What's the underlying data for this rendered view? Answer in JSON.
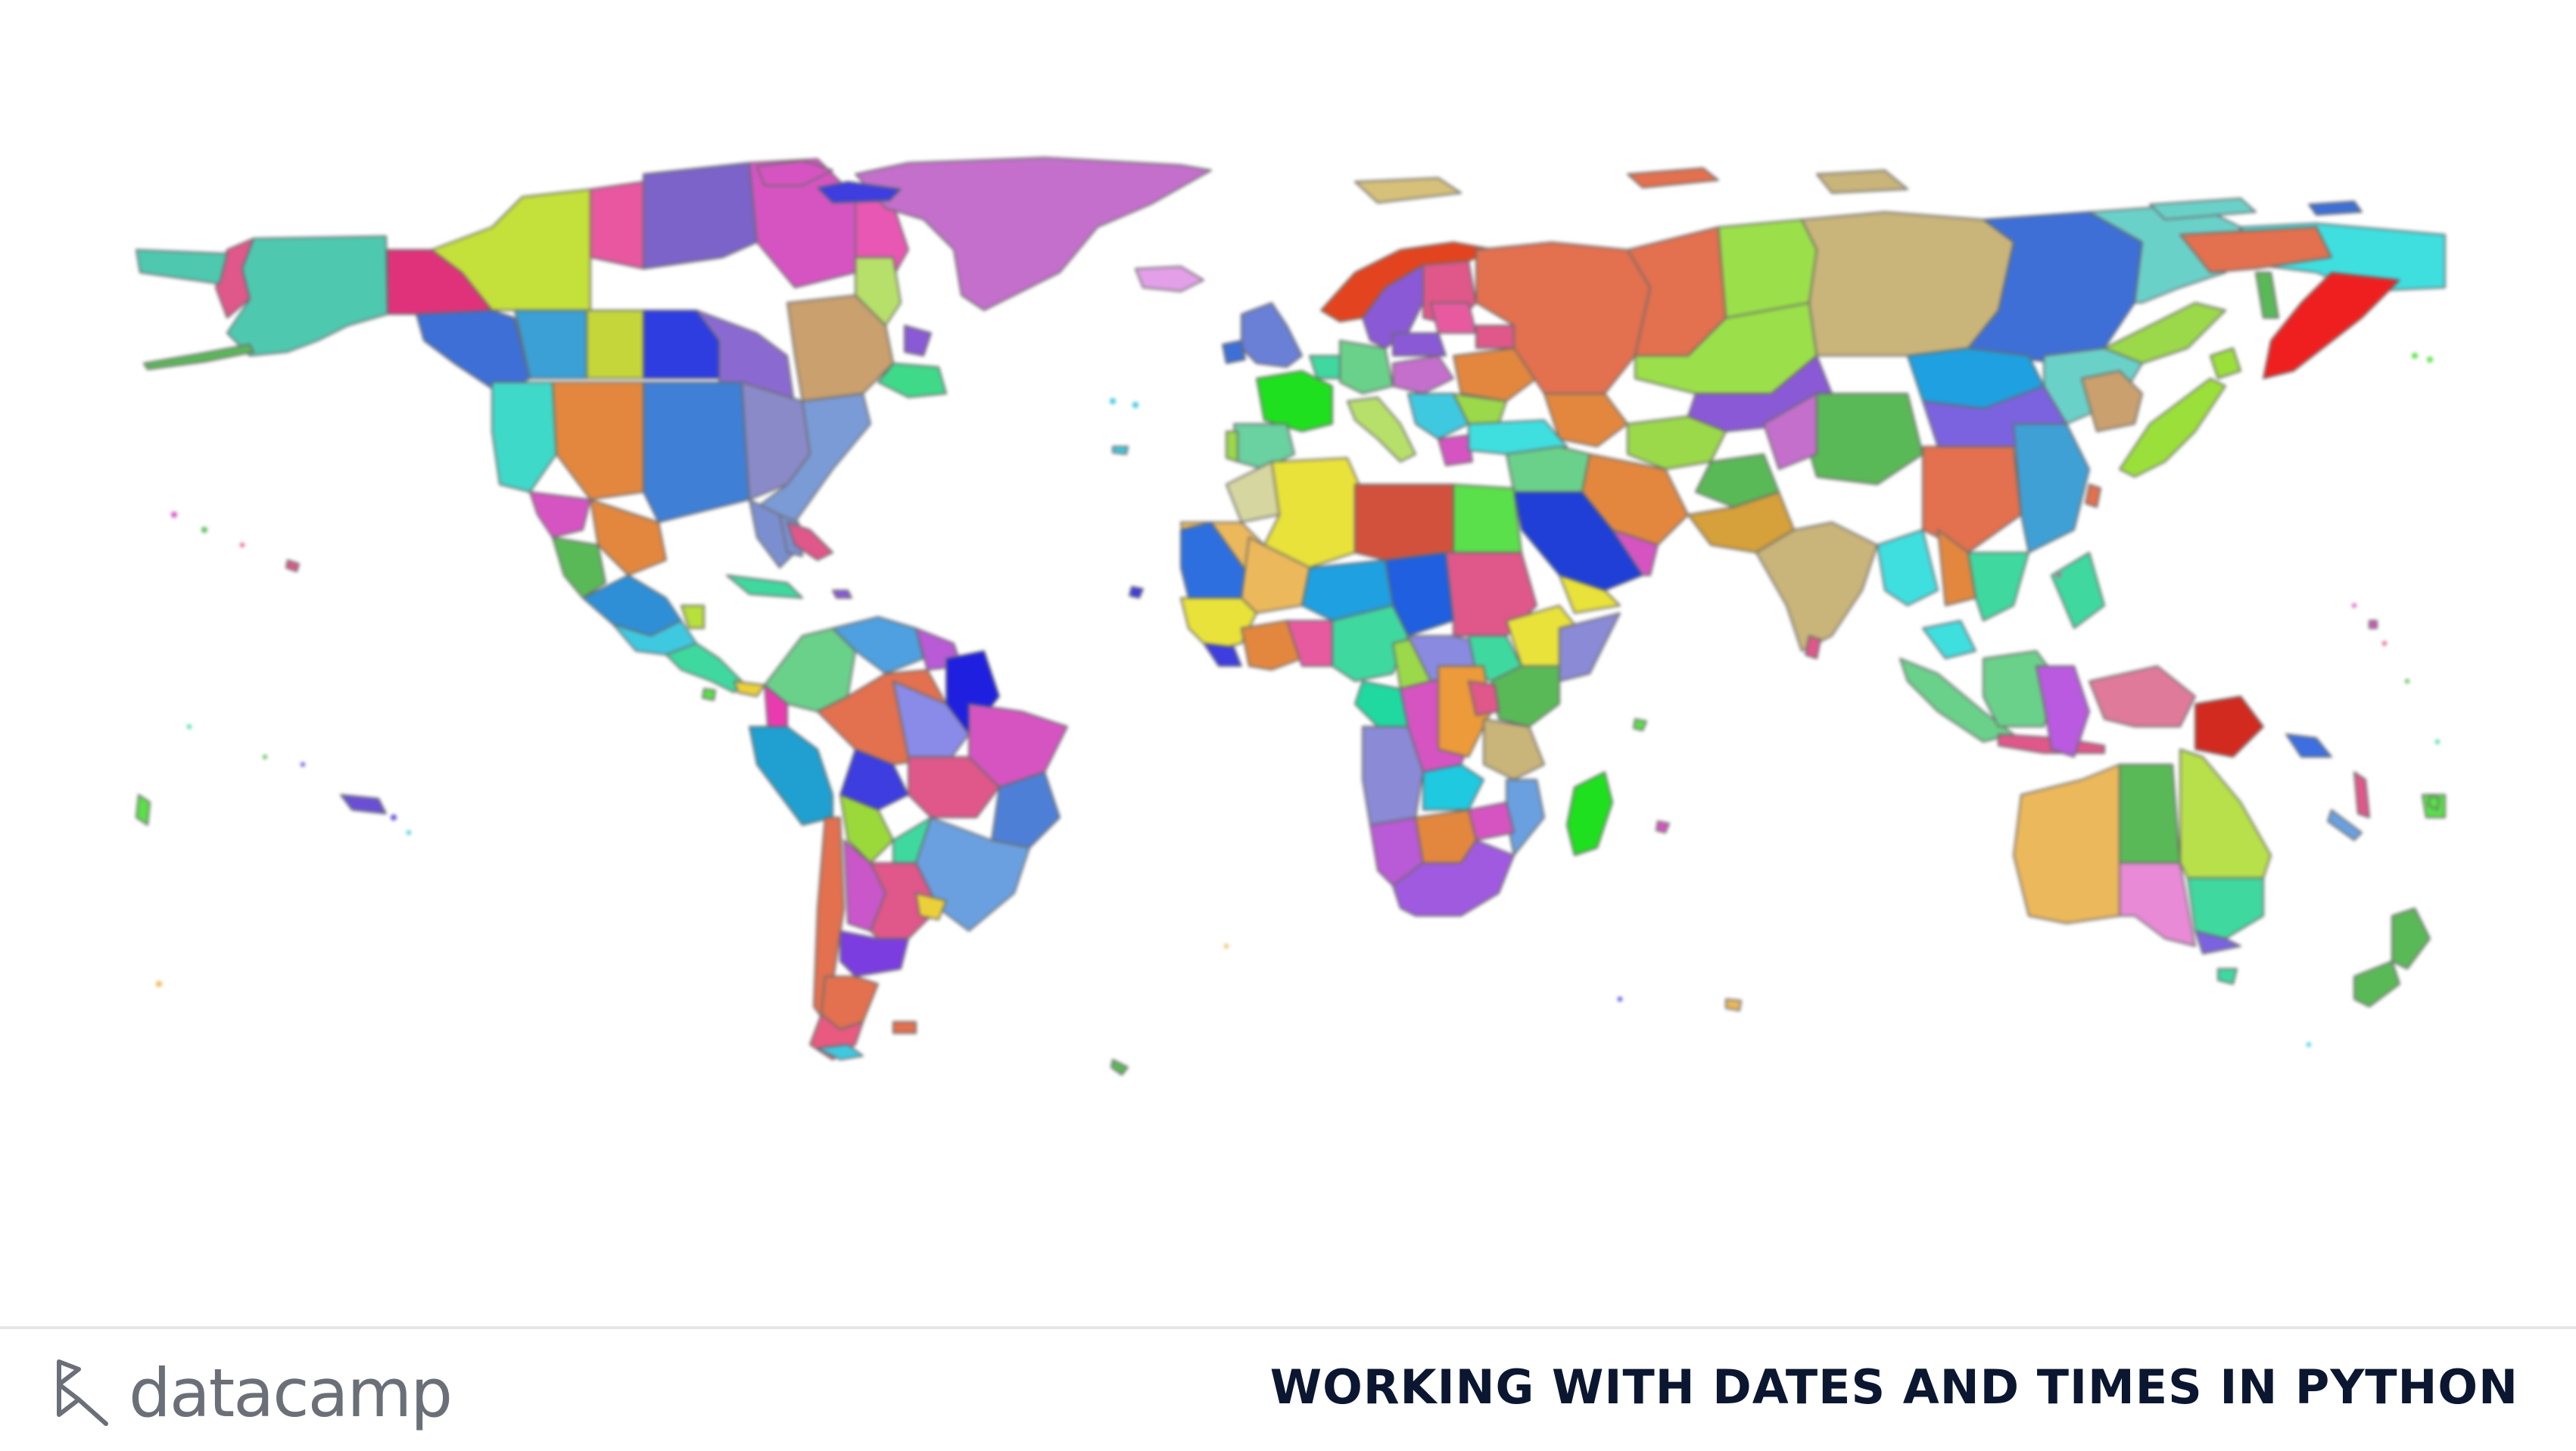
{
  "map": {
    "kind": "world political map",
    "projection": "plate carree",
    "style": "each region filled with a random distinct color",
    "palette": [
      "#e0578a",
      "#b3d93a",
      "#7b63c9",
      "#4ec9b0",
      "#e3873f",
      "#3f7fd6",
      "#9bd94a",
      "#c96bd1",
      "#e8e23a",
      "#d2513d",
      "#5ab957",
      "#ecb85c",
      "#3fd9e0",
      "#e34444",
      "#c9b47a",
      "#8a59d6"
    ]
  },
  "footer": {
    "brand": "datacamp",
    "course_title": "WORKING WITH DATES AND TIMES IN PYTHON"
  }
}
